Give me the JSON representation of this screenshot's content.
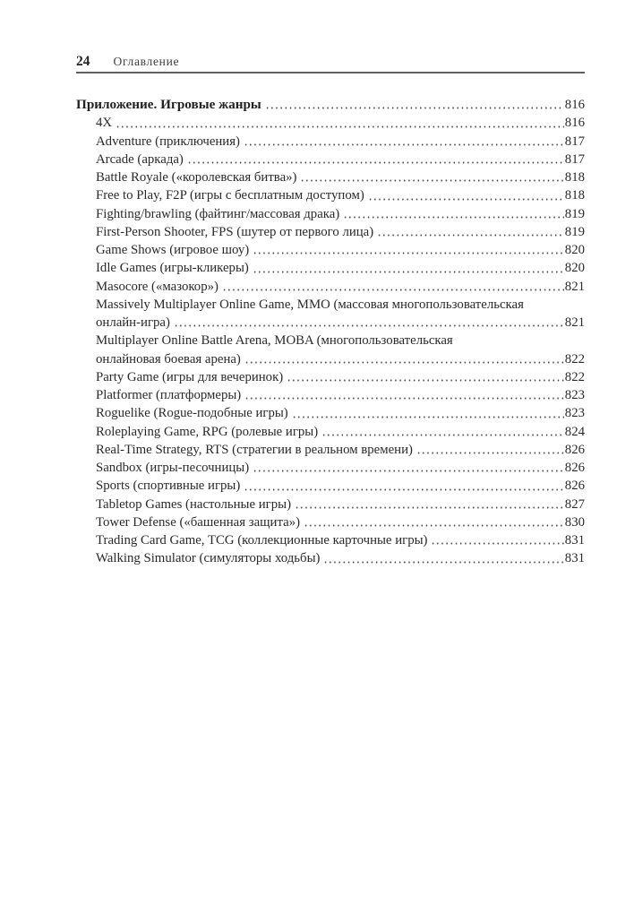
{
  "header": {
    "page_number": "24",
    "running_head": "Оглавление"
  },
  "toc": {
    "lines": [
      {
        "text": "Приложение. Игровые жанры",
        "page": "816",
        "bold": true,
        "indent": 0
      },
      {
        "text": "4X",
        "page": "816"
      },
      {
        "text": "Adventure (приключения)",
        "page": "817"
      },
      {
        "text": "Arcade (аркада)",
        "page": "817"
      },
      {
        "text": "Battle Royale («королевская битва»)",
        "page": "818"
      },
      {
        "text": "Free to Play, F2P (игры с бесплатным доступом)",
        "page": "818"
      },
      {
        "text": "Fighting/brawling (файтинг/массовая драка)",
        "page": "819"
      },
      {
        "text": "First-Person Shooter, FPS (шутер от первого лица)",
        "page": "819"
      },
      {
        "text": "Game Shows (игровое шоу)",
        "page": "820"
      },
      {
        "text": "Idle Games (игры-кликеры)",
        "page": "820"
      },
      {
        "text": "Masocore («мазокор»)",
        "page": "821"
      },
      {
        "text": "Massively Multiplayer Online Game, MMO (массовая многопользовательская",
        "page": null
      },
      {
        "text": "онлайн-игра)",
        "page": "821"
      },
      {
        "text": "Multiplayer Online Battle Arena, MOBA (многопользовательская",
        "page": null
      },
      {
        "text": "онлайновая боевая арена)",
        "page": "822"
      },
      {
        "text": "Party Game (игры для вечеринок)",
        "page": "822"
      },
      {
        "text": "Platformer (платформеры)",
        "page": "823"
      },
      {
        "text": "Roguelike (Rogue-подобные игры)",
        "page": "823"
      },
      {
        "text": "Roleplaying Game, RPG (ролевые игры)",
        "page": "824"
      },
      {
        "text": "Real-Time Strategy, RTS (стратегии в реальном времени)",
        "page": "826"
      },
      {
        "text": "Sandbox (игры-песочницы)",
        "page": "826"
      },
      {
        "text": "Sports (спортивные игры)",
        "page": "826"
      },
      {
        "text": "Tabletop Games (настольные игры)",
        "page": "827"
      },
      {
        "text": "Tower Defense («башенная защита»)",
        "page": "830"
      },
      {
        "text": "Trading Card Game, TCG (коллекционные карточные игры)",
        "page": "831"
      },
      {
        "text": "Walking Simulator (симуляторы ходьбы)",
        "page": "831"
      }
    ]
  }
}
